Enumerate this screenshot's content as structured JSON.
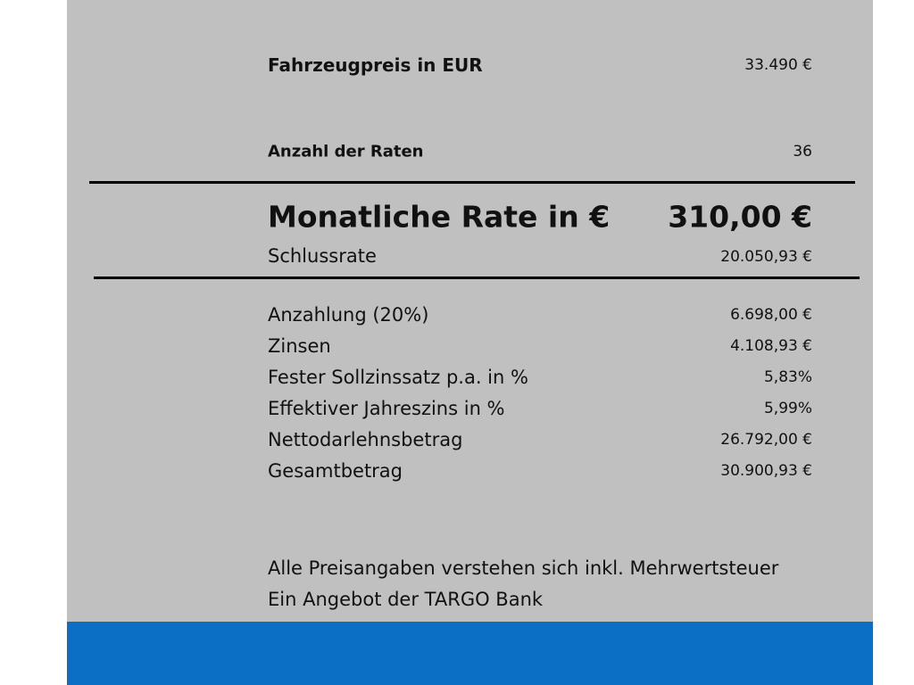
{
  "price": {
    "label": "Fahrzeugpreis in EUR",
    "value": "33.490 €"
  },
  "installments": {
    "label": "Anzahl der Raten",
    "value": "36"
  },
  "monthly_rate": {
    "label": "Monatliche Rate in €",
    "value": "310,00 €"
  },
  "final_rate": {
    "label": "Schlussrate",
    "value": "20.050,93 €"
  },
  "details": [
    {
      "label": "Anzahlung (20%)",
      "value": "6.698,00 €"
    },
    {
      "label": "Zinsen",
      "value": "4.108,93 €"
    },
    {
      "label": "Fester Sollzinssatz p.a. in %",
      "value": "5,83%"
    },
    {
      "label": "Effektiver Jahreszins in %",
      "value": "5,99%"
    },
    {
      "label": "Nettodarlehnsbetrag",
      "value": "26.792,00 €"
    },
    {
      "label": "Gesamtbetrag",
      "value": "30.900,93 €"
    }
  ],
  "notes": [
    "Alle Preisangaben verstehen sich inkl. Mehrwertsteuer",
    "Ein Angebot der TARGO Bank"
  ]
}
